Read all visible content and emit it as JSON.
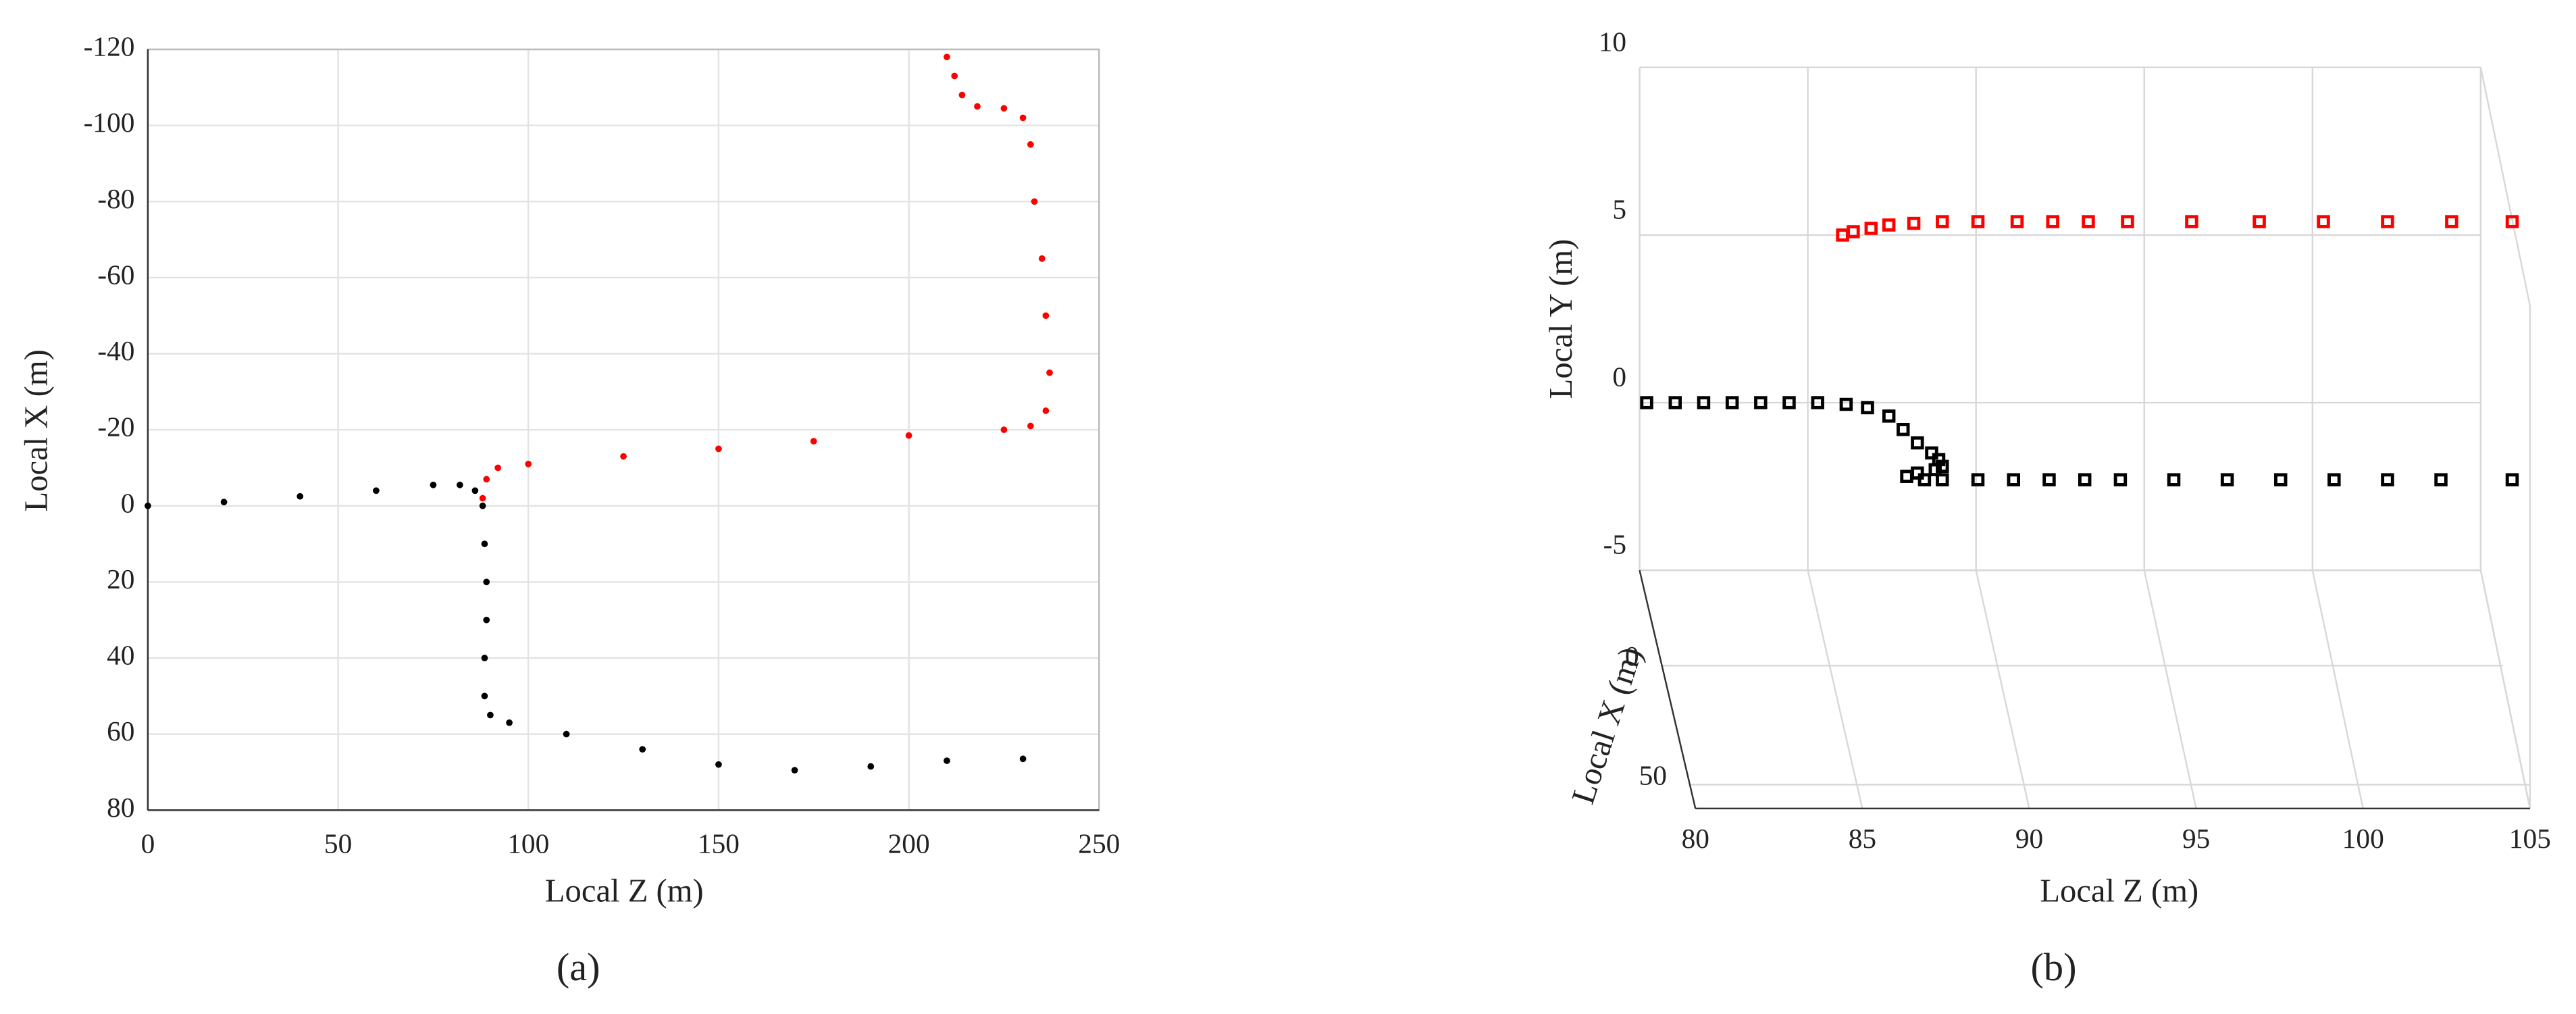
{
  "chart_data": [
    {
      "type": "scatter",
      "caption": "(a)",
      "xlabel": "Local Z (m)",
      "ylabel": "Local X (m)",
      "xlim": [
        0,
        250
      ],
      "xticks": [
        0,
        50,
        100,
        150,
        200,
        250
      ],
      "ylim": [
        80,
        -120
      ],
      "yticks": [
        -120,
        -100,
        -80,
        -60,
        -40,
        -20,
        0,
        20,
        40,
        60,
        80
      ],
      "grid": true,
      "series": [
        {
          "color": "#000000",
          "x": [
            0,
            20,
            40,
            60,
            75,
            82,
            86,
            88,
            88.5,
            89,
            89,
            88.5,
            88.5,
            90,
            95,
            110,
            130,
            150,
            170,
            190,
            210,
            230
          ],
          "values": [
            0,
            -1,
            -2.5,
            -4,
            -5.5,
            -5.5,
            -4,
            0,
            10,
            20,
            30,
            40,
            50,
            55,
            57,
            60,
            64,
            68,
            69.5,
            68.5,
            67,
            66.5
          ]
        },
        {
          "color": "#ff0000",
          "x": [
            88,
            89,
            92,
            100,
            125,
            150,
            175,
            200,
            225,
            232,
            236,
            237,
            236,
            235,
            233,
            232,
            230,
            225,
            218,
            214,
            212,
            210
          ],
          "values": [
            -2,
            -7,
            -10,
            -11,
            -13,
            -15,
            -17,
            -18.5,
            -20,
            -21,
            -25,
            -35,
            -50,
            -65,
            -80,
            -95,
            -102,
            -104.5,
            -105,
            -108,
            -113,
            -118
          ]
        }
      ]
    },
    {
      "type": "scatter3d",
      "caption": "(b)",
      "xlabel": "Local Z (m)",
      "ylabel": "Local Y (m)",
      "zlabel": "Local X (m)",
      "xlim": [
        80,
        105
      ],
      "xticks": [
        80,
        85,
        90,
        95,
        100,
        105
      ],
      "ylim": [
        -5,
        10
      ],
      "yticks": [
        -5,
        0,
        5,
        10
      ],
      "zlim": [
        -40,
        60
      ],
      "zticks": [
        0,
        50
      ],
      "grid": true,
      "series": [
        {
          "color": "#ff0000",
          "x": [
            85.7,
            86,
            86.5,
            87,
            87.7,
            88.5,
            89.5,
            90.6,
            91.6,
            92.6,
            93.7,
            95.5,
            97.4,
            99.2,
            101,
            102.8,
            104.5
          ],
          "values": [
            5,
            5.1,
            5.2,
            5.3,
            5.35,
            5.4,
            5.4,
            5.4,
            5.4,
            5.4,
            5.4,
            5.4,
            5.4,
            5.4,
            5.4,
            5.4,
            5.4
          ]
        },
        {
          "color": "#000000",
          "x": [
            80.2,
            81,
            81.8,
            82.6,
            83.4,
            84.2,
            85,
            85.8,
            86.4,
            87,
            87.4,
            87.8,
            88.2,
            88.4,
            88.5,
            88.3,
            87.8,
            87.5,
            88,
            88.5,
            89.5,
            90.5,
            91.5,
            92.5,
            93.5,
            95,
            96.5,
            98,
            99.5,
            101,
            102.5,
            104.5
          ],
          "values": [
            0,
            0,
            0,
            0,
            0,
            0,
            0,
            -0.05,
            -0.15,
            -0.4,
            -0.8,
            -1.2,
            -1.5,
            -1.7,
            -1.9,
            -2,
            -2.1,
            -2.2,
            -2.3,
            -2.3,
            -2.3,
            -2.3,
            -2.3,
            -2.3,
            -2.3,
            -2.3,
            -2.3,
            -2.3,
            -2.3,
            -2.3,
            -2.3,
            -2.3
          ]
        }
      ]
    }
  ]
}
